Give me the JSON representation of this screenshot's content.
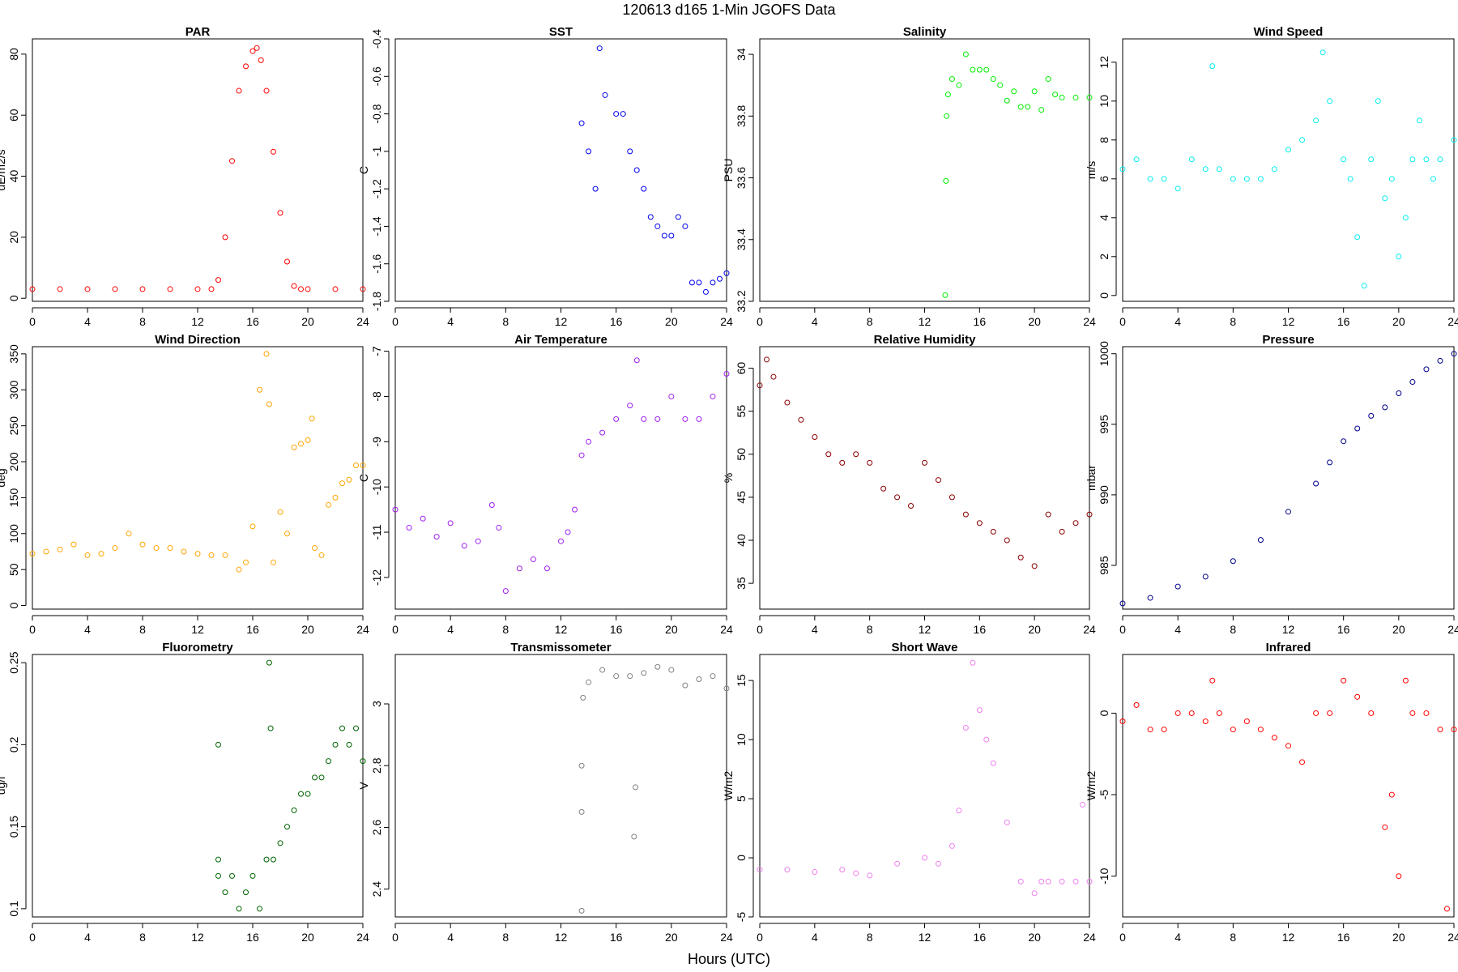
{
  "figure": {
    "title": "120613   d165   1-Min  JGOFS Data",
    "xlabel": "Hours (UTC)"
  },
  "chart_data": [
    {
      "type": "scatter",
      "title": "PAR",
      "ylabel": "uE/m2/s",
      "xlim": [
        0,
        24
      ],
      "ylim": [
        -1,
        85
      ],
      "xticks": [
        0,
        4,
        8,
        12,
        16,
        20,
        24
      ],
      "yticks": [
        0,
        20,
        40,
        60,
        80
      ],
      "color": "#ff0000",
      "x": [
        0,
        2,
        4,
        6,
        8,
        10,
        12,
        13,
        13.5,
        14,
        14.5,
        15,
        15.5,
        16,
        16.3,
        16.6,
        17,
        17.5,
        18,
        18.5,
        19,
        19.5,
        20,
        22,
        24
      ],
      "y": [
        3,
        3,
        3,
        3,
        3,
        3,
        3,
        3,
        6,
        20,
        45,
        68,
        76,
        81,
        82,
        78,
        68,
        48,
        28,
        12,
        4,
        3,
        3,
        3,
        3
      ]
    },
    {
      "type": "scatter",
      "title": "SST",
      "ylabel": "C",
      "xlim": [
        0,
        24
      ],
      "ylim": [
        -1.8,
        -0.4
      ],
      "xticks": [
        0,
        4,
        8,
        12,
        16,
        20,
        24
      ],
      "yticks": [
        -1.8,
        -1.6,
        -1.4,
        -1.2,
        -1.0,
        -0.8,
        -0.6,
        -0.4
      ],
      "color": "#0000ee",
      "x": [
        13.5,
        14,
        14.5,
        14.8,
        15.2,
        16,
        16.5,
        17,
        17.5,
        18,
        18.5,
        19,
        19.5,
        20,
        20.5,
        21,
        21.5,
        22,
        22.5,
        23,
        23.5,
        24
      ],
      "y": [
        -0.85,
        -1.0,
        -1.2,
        -0.45,
        -0.7,
        -0.8,
        -0.8,
        -1.0,
        -1.1,
        -1.2,
        -1.35,
        -1.4,
        -1.45,
        -1.45,
        -1.35,
        -1.4,
        -1.7,
        -1.7,
        -1.75,
        -1.7,
        -1.68,
        -1.65
      ]
    },
    {
      "type": "scatter",
      "title": "Salinity",
      "ylabel": "PSU",
      "xlim": [
        0,
        24
      ],
      "ylim": [
        33.2,
        34.05
      ],
      "xticks": [
        0,
        4,
        8,
        12,
        16,
        20,
        24
      ],
      "yticks": [
        33.2,
        33.4,
        33.6,
        33.8,
        34.0
      ],
      "color": "#00ee00",
      "x": [
        13.5,
        13.55,
        13.6,
        13.7,
        14,
        14.5,
        15,
        15.5,
        16,
        16.5,
        17,
        17.5,
        18,
        18.5,
        19,
        19.5,
        20,
        20.5,
        21,
        21.5,
        22,
        23,
        24
      ],
      "y": [
        33.22,
        33.59,
        33.8,
        33.87,
        33.92,
        33.9,
        34.0,
        33.95,
        33.95,
        33.95,
        33.92,
        33.9,
        33.85,
        33.88,
        33.83,
        33.83,
        33.88,
        33.82,
        33.92,
        33.87,
        33.86,
        33.86,
        33.86
      ]
    },
    {
      "type": "scatter",
      "title": "Wind Speed",
      "ylabel": "m/s",
      "xlim": [
        0,
        24
      ],
      "ylim": [
        -0.3,
        13.2
      ],
      "xticks": [
        0,
        4,
        8,
        12,
        16,
        20,
        24
      ],
      "yticks": [
        0,
        2,
        4,
        6,
        8,
        10,
        12
      ],
      "color": "#00eeee",
      "x": [
        0,
        1,
        2,
        3,
        4,
        5,
        6,
        6.5,
        7,
        8,
        9,
        10,
        11,
        12,
        13,
        14,
        14.5,
        15,
        16,
        16.5,
        17,
        17.5,
        18,
        18.5,
        19,
        19.5,
        20,
        20.5,
        21,
        21.5,
        22,
        22.5,
        23,
        24
      ],
      "y": [
        6.5,
        7,
        6,
        6,
        5.5,
        7,
        6.5,
        11.8,
        6.5,
        6,
        6,
        6,
        6.5,
        7.5,
        8,
        9,
        12.5,
        10,
        7,
        6,
        3,
        0.5,
        7,
        10,
        5,
        6,
        2,
        4,
        7,
        9,
        7,
        6,
        7,
        8
      ]
    },
    {
      "type": "scatter",
      "title": "Wind Direction",
      "ylabel": "deg",
      "xlim": [
        0,
        24
      ],
      "ylim": [
        -5,
        360
      ],
      "xticks": [
        0,
        4,
        8,
        12,
        16,
        20,
        24
      ],
      "yticks": [
        0,
        50,
        100,
        150,
        200,
        250,
        300,
        350
      ],
      "color": "#ffa500",
      "x": [
        0,
        1,
        2,
        3,
        4,
        5,
        6,
        7,
        8,
        9,
        10,
        11,
        12,
        13,
        14,
        15,
        15.5,
        16,
        16.5,
        17,
        17.2,
        17.5,
        18,
        18.5,
        19,
        19.5,
        20,
        20.3,
        20.5,
        21,
        21.5,
        22,
        22.5,
        23,
        23.5,
        24
      ],
      "y": [
        72,
        75,
        78,
        85,
        70,
        72,
        80,
        100,
        85,
        80,
        80,
        75,
        72,
        70,
        70,
        50,
        60,
        110,
        300,
        350,
        280,
        60,
        130,
        100,
        220,
        225,
        230,
        260,
        80,
        70,
        140,
        150,
        170,
        175,
        195,
        195
      ]
    },
    {
      "type": "scatter",
      "title": "Air Temperature",
      "ylabel": "C",
      "xlim": [
        0,
        24
      ],
      "ylim": [
        -12.7,
        -6.9
      ],
      "xticks": [
        0,
        4,
        8,
        12,
        16,
        20,
        24
      ],
      "yticks": [
        -12,
        -11,
        -10,
        -9,
        -8,
        -7
      ],
      "color": "#a020f0",
      "x": [
        0,
        1,
        2,
        3,
        4,
        5,
        6,
        7,
        7.5,
        8,
        9,
        10,
        11,
        12,
        12.5,
        13,
        13.5,
        14,
        15,
        16,
        17,
        17.5,
        18,
        19,
        20,
        21,
        22,
        23,
        24
      ],
      "y": [
        -10.5,
        -10.9,
        -10.7,
        -11.1,
        -10.8,
        -11.3,
        -11.2,
        -10.4,
        -10.9,
        -12.3,
        -11.8,
        -11.6,
        -11.8,
        -11.2,
        -11.0,
        -10.5,
        -9.3,
        -9.0,
        -8.8,
        -8.5,
        -8.2,
        -7.2,
        -8.5,
        -8.5,
        -8.0,
        -8.5,
        -8.5,
        -8.0,
        -7.5
      ]
    },
    {
      "type": "scatter",
      "title": "Relative Humidity",
      "ylabel": "%",
      "xlim": [
        0,
        24
      ],
      "ylim": [
        32,
        62.5
      ],
      "xticks": [
        0,
        4,
        8,
        12,
        16,
        20,
        24
      ],
      "yticks": [
        35,
        40,
        45,
        50,
        55,
        60
      ],
      "color": "#8b0000",
      "x": [
        0,
        0.5,
        1,
        2,
        3,
        4,
        5,
        6,
        7,
        8,
        9,
        10,
        11,
        12,
        13,
        14,
        15,
        16,
        17,
        18,
        19,
        20,
        21,
        22,
        23,
        24
      ],
      "y": [
        58,
        61,
        59,
        56,
        54,
        52,
        50,
        49,
        50,
        49,
        46,
        45,
        44,
        49,
        47,
        45,
        43,
        42,
        41,
        40,
        38,
        37,
        43,
        41,
        42,
        43
      ]
    },
    {
      "type": "scatter",
      "title": "Pressure",
      "ylabel": "mbar",
      "xlim": [
        0,
        24
      ],
      "ylim": [
        981.9,
        1000.5
      ],
      "xticks": [
        0,
        4,
        8,
        12,
        16,
        20,
        24
      ],
      "yticks": [
        985,
        990,
        995,
        1000
      ],
      "color": "#00008b",
      "x": [
        0,
        2,
        4,
        6,
        8,
        10,
        12,
        14,
        15,
        16,
        17,
        18,
        19,
        20,
        21,
        22,
        23,
        24
      ],
      "y": [
        982.3,
        982.7,
        983.5,
        984.2,
        985.3,
        986.8,
        988.8,
        990.8,
        992.3,
        993.8,
        994.7,
        995.6,
        996.2,
        997.2,
        998.0,
        998.9,
        999.5,
        1000.0
      ]
    },
    {
      "type": "scatter",
      "title": "Fluorometry",
      "ylabel": "ug/l",
      "xlim": [
        0,
        24
      ],
      "ylim": [
        0.095,
        0.255
      ],
      "xticks": [
        0,
        4,
        8,
        12,
        16,
        20,
        24
      ],
      "yticks": [
        0.1,
        0.15,
        0.2,
        0.25
      ],
      "color": "#006400",
      "x": [
        13.5,
        13.5,
        13.5,
        14,
        14.5,
        15,
        15.5,
        16,
        16.5,
        17,
        17.2,
        17.3,
        17.5,
        18,
        18.5,
        19,
        19.5,
        20,
        20.5,
        21,
        21.5,
        22,
        22.5,
        23,
        23.5,
        24
      ],
      "y": [
        0.12,
        0.13,
        0.2,
        0.11,
        0.12,
        0.1,
        0.11,
        0.12,
        0.1,
        0.13,
        0.25,
        0.21,
        0.13,
        0.14,
        0.15,
        0.16,
        0.17,
        0.17,
        0.18,
        0.18,
        0.19,
        0.2,
        0.21,
        0.2,
        0.21,
        0.19
      ]
    },
    {
      "type": "scatter",
      "title": "Transmissometer",
      "ylabel": "V",
      "xlim": [
        0,
        24
      ],
      "ylim": [
        2.31,
        3.16
      ],
      "xticks": [
        0,
        4,
        8,
        12,
        16,
        20,
        24
      ],
      "yticks": [
        2.4,
        2.6,
        2.8,
        3.0
      ],
      "color": "#808080",
      "x": [
        13.5,
        13.5,
        13.5,
        13.6,
        14,
        15,
        16,
        17,
        17.3,
        17.4,
        18,
        19,
        20,
        21,
        22,
        23,
        24
      ],
      "y": [
        2.33,
        2.65,
        2.8,
        3.02,
        3.07,
        3.11,
        3.09,
        3.09,
        2.57,
        2.73,
        3.1,
        3.12,
        3.11,
        3.06,
        3.08,
        3.09,
        3.05
      ]
    },
    {
      "type": "scatter",
      "title": "Short Wave",
      "ylabel": "W/m2",
      "xlim": [
        0,
        24
      ],
      "ylim": [
        -5,
        17.2
      ],
      "xticks": [
        0,
        4,
        8,
        12,
        16,
        20,
        24
      ],
      "yticks": [
        -5,
        0,
        5,
        10,
        15
      ],
      "color": "#ee82ee",
      "x": [
        0,
        2,
        4,
        6,
        7,
        8,
        10,
        12,
        13,
        14,
        14.5,
        15,
        15.5,
        16,
        16.5,
        17,
        18,
        19,
        20,
        20.5,
        21,
        22,
        23,
        23.5,
        24
      ],
      "y": [
        -1,
        -1,
        -1.2,
        -1,
        -1.3,
        -1.5,
        -0.5,
        0,
        -0.5,
        1,
        4,
        11,
        16.5,
        12.5,
        10,
        8,
        3,
        -2,
        -3,
        -2,
        -2,
        -2,
        -2,
        4.5,
        -2
      ]
    },
    {
      "type": "scatter",
      "title": "Infrared",
      "ylabel": "W/m2",
      "xlim": [
        0,
        24
      ],
      "ylim": [
        -12.5,
        3.6
      ],
      "xticks": [
        0,
        4,
        8,
        12,
        16,
        20,
        24
      ],
      "yticks": [
        -10,
        -5,
        0
      ],
      "color": "#ff0000",
      "x": [
        0,
        1,
        2,
        3,
        4,
        5,
        6,
        6.5,
        7,
        8,
        9,
        10,
        11,
        12,
        13,
        14,
        15,
        16,
        17,
        18,
        19,
        19.5,
        20,
        20.5,
        21,
        22,
        23,
        23.5,
        24
      ],
      "y": [
        -0.5,
        0.5,
        -1,
        -1,
        0,
        0,
        -0.5,
        2,
        0,
        -1,
        -0.5,
        -1,
        -1.5,
        -2,
        -3,
        0,
        0,
        2,
        1,
        0,
        -7,
        -5,
        -10,
        2,
        0,
        0,
        -1,
        -12,
        -1
      ]
    }
  ]
}
